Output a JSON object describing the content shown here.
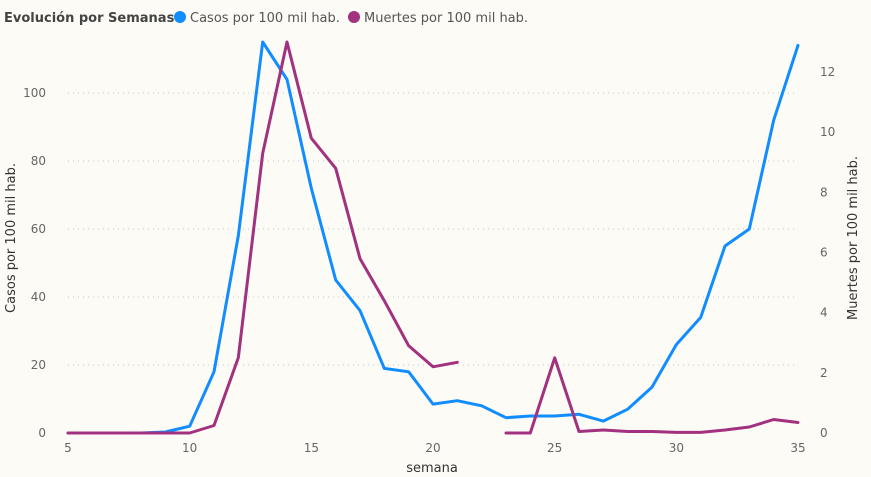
{
  "chart_data": {
    "type": "line",
    "legend": {
      "title": "Evolución por Semanas",
      "placement": "top-left"
    },
    "xlabel": "semana",
    "ylabel_left": "Casos por 100 mil hab.",
    "ylabel_right": "Muertes por 100 mil hab.",
    "xlim": [
      5,
      35
    ],
    "ylim_left": [
      0,
      115
    ],
    "ylim_right": [
      0,
      13
    ],
    "x_ticks": [
      5,
      10,
      15,
      20,
      25,
      30,
      35
    ],
    "y_left_ticks": [
      0,
      20,
      40,
      60,
      80,
      100
    ],
    "y_right_ticks": [
      0,
      2,
      4,
      6,
      8,
      10,
      12
    ],
    "grid": "horizontal dotted",
    "series": [
      {
        "name": "Casos por 100 mil hab.",
        "axis": "left",
        "color": "#118dff",
        "x": [
          5,
          6,
          7,
          8,
          9,
          10,
          11,
          12,
          13,
          14,
          15,
          16,
          17,
          18,
          19,
          20,
          21,
          22,
          23,
          24,
          25,
          26,
          27,
          28,
          29,
          30,
          31,
          32,
          33,
          34,
          35
        ],
        "values": [
          0,
          0,
          0,
          0,
          0.3,
          2,
          18,
          58,
          115,
          104,
          72,
          45,
          36,
          19,
          18,
          8.5,
          9.5,
          8,
          4.5,
          5,
          5,
          5.5,
          3.5,
          7,
          13.5,
          26,
          34,
          55,
          60,
          92,
          114
        ]
      },
      {
        "name": "Muertes por 100 mil hab.",
        "axis": "right",
        "color": "#a2317f",
        "x": [
          5,
          6,
          7,
          8,
          9,
          10,
          11,
          12,
          13,
          14,
          15,
          16,
          17,
          18,
          19,
          20,
          21,
          22,
          23,
          24,
          25,
          26,
          27,
          28,
          29,
          30,
          31,
          32,
          33,
          34,
          35
        ],
        "values": [
          0,
          0,
          0,
          0,
          0,
          0,
          0.25,
          2.5,
          9.3,
          13,
          9.8,
          8.8,
          5.8,
          4.4,
          2.9,
          2.2,
          2.35,
          null,
          0,
          0,
          2.5,
          0.05,
          0.1,
          0.05,
          0.05,
          0.02,
          0.02,
          0.1,
          0.2,
          0.45,
          0.35
        ]
      }
    ]
  }
}
